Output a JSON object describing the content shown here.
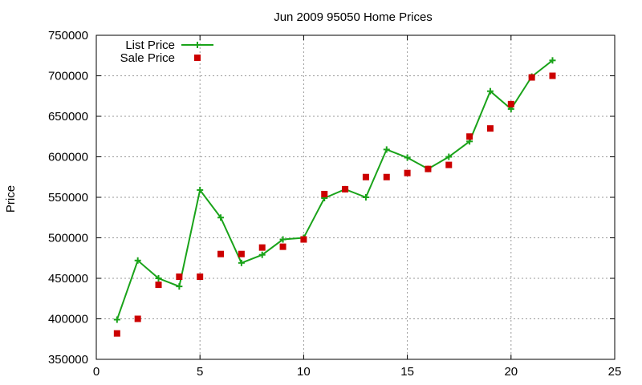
{
  "chart_data": {
    "type": "line",
    "title": "Jun 2009 95050 Home Prices",
    "xlabel": "",
    "ylabel": "Price",
    "xlim": [
      0,
      25
    ],
    "ylim": [
      350000,
      750000
    ],
    "x_ticks": [
      "0",
      "5",
      "10",
      "15",
      "20",
      "25"
    ],
    "x_tick_values": [
      0,
      5,
      10,
      15,
      20,
      25
    ],
    "y_ticks": [
      "350000",
      "400000",
      "450000",
      "500000",
      "550000",
      "600000",
      "650000",
      "700000",
      "750000"
    ],
    "y_tick_values": [
      350000,
      400000,
      450000,
      500000,
      550000,
      600000,
      650000,
      700000,
      750000
    ],
    "grid": true,
    "legend_position": "top-left",
    "series": [
      {
        "name": "List Price",
        "style": "line+cross",
        "color": "#1aa31a",
        "x": [
          1,
          2,
          3,
          4,
          5,
          6,
          7,
          8,
          9,
          10,
          11,
          12,
          13,
          14,
          15,
          16,
          17,
          18,
          19,
          20,
          21,
          22
        ],
        "y": [
          399000,
          472000,
          450000,
          440000,
          559000,
          525000,
          469000,
          479000,
          498000,
          500000,
          549000,
          560000,
          550000,
          609000,
          599000,
          585000,
          600000,
          619000,
          681000,
          659000,
          699000,
          719000
        ]
      },
      {
        "name": "Sale Price",
        "style": "square",
        "color": "#cc0000",
        "x": [
          1,
          2,
          3,
          4,
          5,
          6,
          7,
          8,
          9,
          10,
          11,
          12,
          13,
          14,
          15,
          16,
          17,
          18,
          19,
          20,
          21,
          22
        ],
        "y": [
          382000,
          400000,
          442000,
          452000,
          452000,
          480000,
          480000,
          488000,
          489000,
          498000,
          554000,
          560000,
          575000,
          575000,
          580000,
          585000,
          590000,
          625000,
          635000,
          665000,
          698000,
          700000
        ]
      }
    ]
  }
}
